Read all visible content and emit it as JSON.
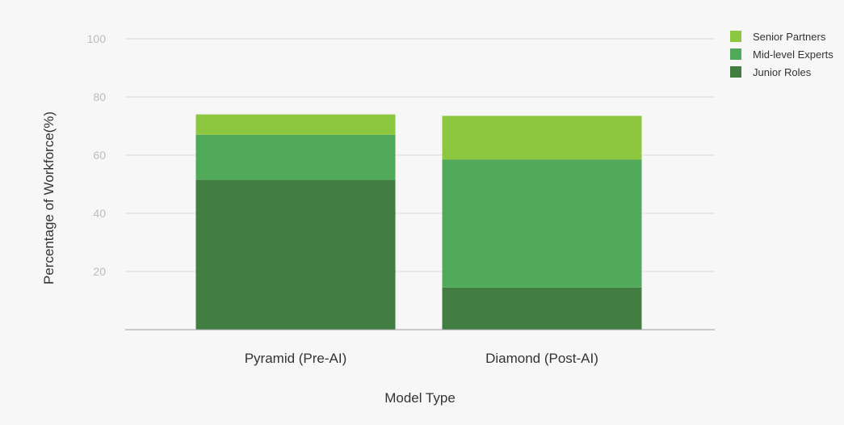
{
  "chart_data": {
    "type": "bar",
    "stacked": true,
    "categories": [
      "Pyramid (Pre-AI)",
      "Diamond (Post-AI)"
    ],
    "series": [
      {
        "name": "Junior Roles",
        "values": [
          51.5,
          14.5
        ],
        "color": "#427d41"
      },
      {
        "name": "Mid-level Experts",
        "values": [
          15.5,
          44
        ],
        "color": "#50aa5a"
      },
      {
        "name": "Senior Partners",
        "values": [
          7,
          15
        ],
        "color": "#8dc63f"
      }
    ],
    "title": "",
    "xlabel": "Model Type",
    "ylabel": "Percentage of Workforce(%)",
    "ylim": [
      0,
      100
    ],
    "yticks": [
      20,
      40,
      60,
      80,
      100
    ],
    "grid": true,
    "legend_position": "top-right",
    "legend_order": [
      "Senior Partners",
      "Mid-level Experts",
      "Junior Roles"
    ],
    "gridline_color": "#dcdcdc"
  }
}
